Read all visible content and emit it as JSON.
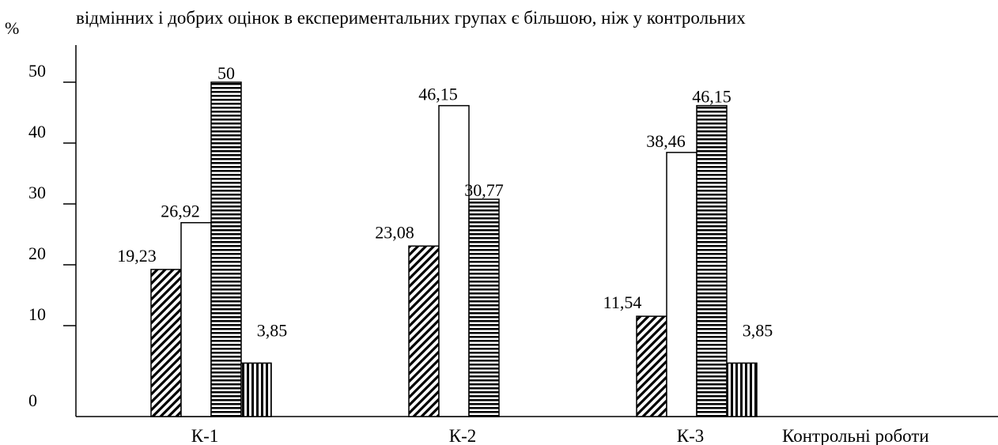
{
  "header_text": "відмінних і добрих оцінок в експериментальних групах є більшою, ніж у контрольних",
  "chart_data": {
    "type": "bar",
    "ylabel": "%",
    "xlabel": "Контрольні роботи",
    "categories": [
      "К-1",
      "К-2",
      "К-3"
    ],
    "y_ticks": [
      "0",
      "10",
      "20",
      "30",
      "40",
      "50"
    ],
    "ylim": [
      0,
      55
    ],
    "grid": false,
    "legend": "none",
    "series_patterns": [
      "diagonal-hatch",
      "white",
      "horizontal-lines",
      "vertical-lines"
    ],
    "bars": [
      {
        "category": 0,
        "series": 0,
        "value": 19.23,
        "label": "19,23"
      },
      {
        "category": 0,
        "series": 1,
        "value": 26.92,
        "label": "26,92"
      },
      {
        "category": 0,
        "series": 2,
        "value": 50,
        "label": "50"
      },
      {
        "category": 0,
        "series": 3,
        "value": 3.85,
        "label": "3,85"
      },
      {
        "category": 1,
        "series": 0,
        "value": 23.08,
        "label": "23,08"
      },
      {
        "category": 1,
        "series": 1,
        "value": 46.15,
        "label": "46,15"
      },
      {
        "category": 1,
        "series": 2,
        "value": 30.77,
        "label": "30,77"
      },
      {
        "category": 2,
        "series": 0,
        "value": 11.54,
        "label": "11,54"
      },
      {
        "category": 2,
        "series": 1,
        "value": 38.46,
        "label": "38,46"
      },
      {
        "category": 2,
        "series": 2,
        "value": 46.15,
        "label": "46,15"
      },
      {
        "category": 2,
        "series": 3,
        "value": 3.85,
        "label": "3,85"
      }
    ]
  }
}
